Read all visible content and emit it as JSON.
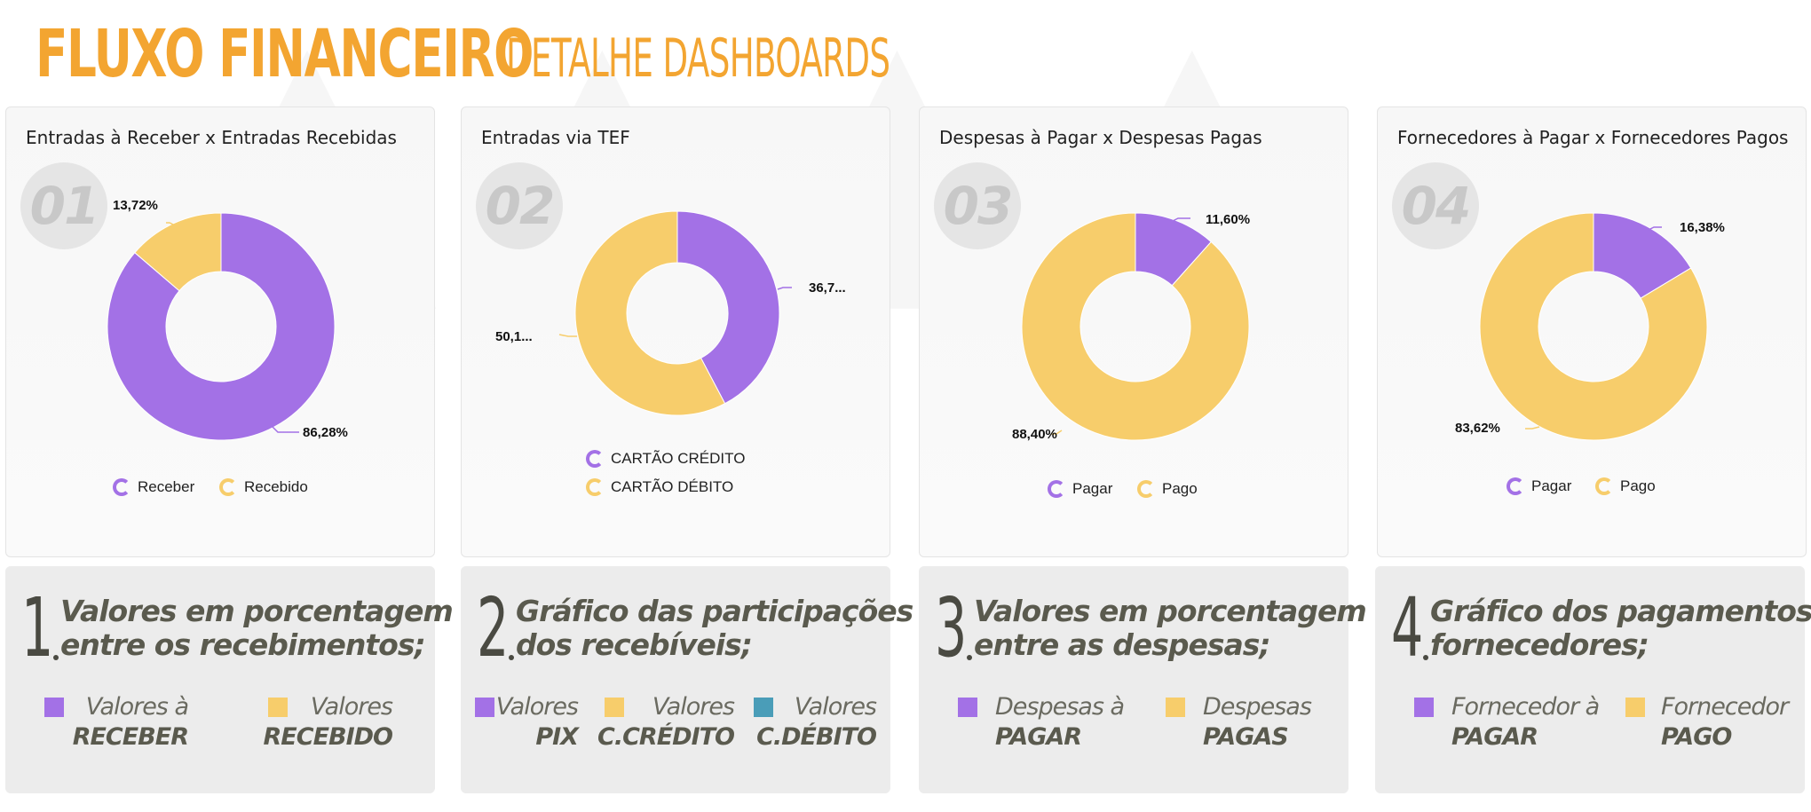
{
  "header": {
    "title": "FLUXO FINANCEIRO",
    "subtitle": "DETALHE DASHBOARDS"
  },
  "colors": {
    "accent": "#f3a531",
    "purple": "#a371e6",
    "yellow": "#f7cd6b",
    "teal": "#4a9db8"
  },
  "cards": [
    {
      "number": "01",
      "title": "Entradas à Receber x Entradas Recebidas",
      "slice_labels": [
        "86,28%",
        "13,72%"
      ],
      "legend": [
        "Receber",
        "Recebido"
      ]
    },
    {
      "number": "02",
      "title": "Entradas via TEF",
      "slice_labels": [
        "36,7...",
        "50,1..."
      ],
      "legend": [
        "CARTÃO CRÉDITO",
        "CARTÃO DÉBITO"
      ]
    },
    {
      "number": "03",
      "title": "Despesas à Pagar x Despesas Pagas",
      "slice_labels": [
        "11,60%",
        "88,40%"
      ],
      "legend": [
        "Pagar",
        "Pago"
      ]
    },
    {
      "number": "04",
      "title": "Fornecedores à Pagar x Fornecedores Pagos",
      "slice_labels": [
        "16,38%",
        "83,62%"
      ],
      "legend": [
        "Pagar",
        "Pago"
      ]
    }
  ],
  "descriptions": [
    {
      "number": "1",
      "line1": "Valores em porcentagem",
      "line2": "entre os recebimentos;",
      "items": [
        {
          "top": "Valores à",
          "bottom": "RECEBER"
        },
        {
          "top": "Valores",
          "bottom": "RECEBIDO"
        }
      ]
    },
    {
      "number": "2",
      "line1": "Gráfico das participações",
      "line2": "dos recebíveis;",
      "items": [
        {
          "top": "Valores",
          "bottom": "PIX"
        },
        {
          "top": "Valores",
          "bottom": "C.CRÉDITO"
        },
        {
          "top": "Valores",
          "bottom": "C.DÉBITO"
        }
      ]
    },
    {
      "number": "3",
      "line1": "Valores em porcentagem",
      "line2": "entre as despesas;",
      "items": [
        {
          "top": "Despesas à",
          "bottom": "PAGAR"
        },
        {
          "top": "Despesas",
          "bottom": "PAGAS"
        }
      ]
    },
    {
      "number": "4",
      "line1": "Gráfico dos pagamentos",
      "line2": "fornecedores;",
      "items": [
        {
          "top": "Fornecedor à",
          "bottom": "PAGAR"
        },
        {
          "top": "Fornecedor",
          "bottom": "PAGO"
        }
      ]
    }
  ],
  "chart_data": [
    {
      "type": "pie",
      "categories": [
        "Receber",
        "Recebido"
      ],
      "values": [
        86.28,
        13.72
      ]
    },
    {
      "type": "pie",
      "categories": [
        "CARTÃO CRÉDITO",
        "CARTÃO DÉBITO"
      ],
      "values": [
        36.7,
        50.1
      ]
    },
    {
      "type": "pie",
      "categories": [
        "Pagar",
        "Pago"
      ],
      "values": [
        11.6,
        88.4
      ]
    },
    {
      "type": "pie",
      "categories": [
        "Pagar",
        "Pago"
      ],
      "values": [
        16.38,
        83.62
      ]
    }
  ]
}
